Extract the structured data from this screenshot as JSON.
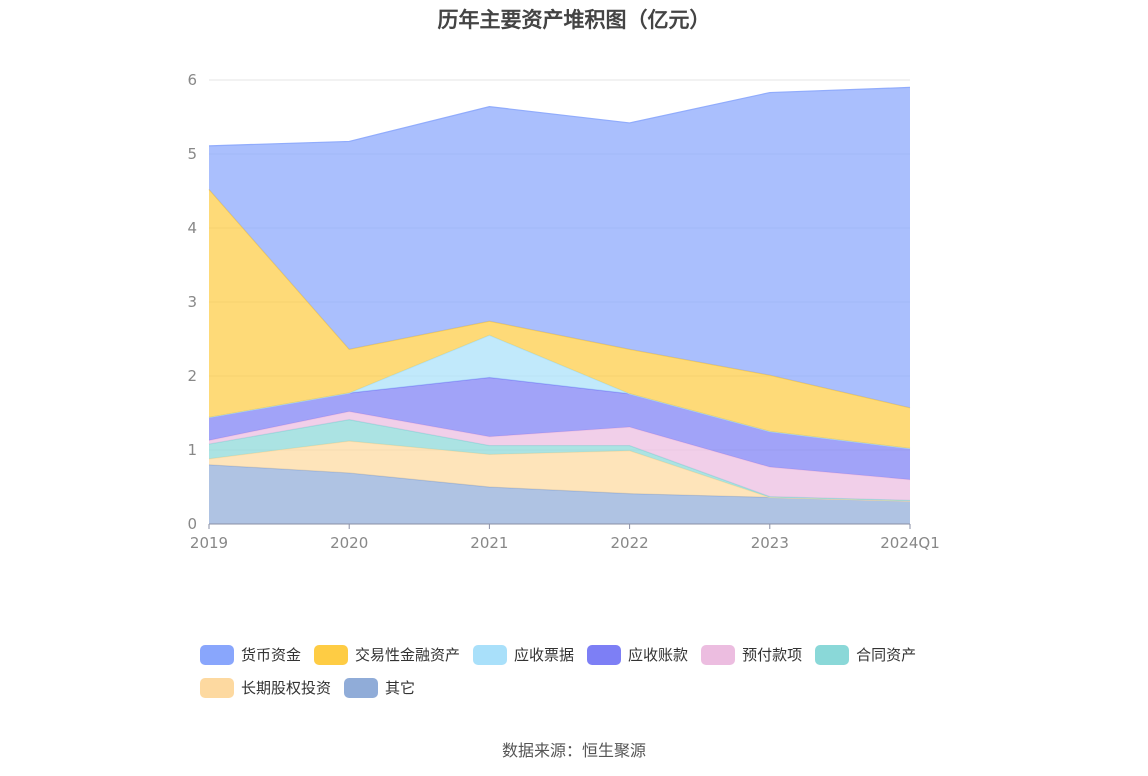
{
  "chart_data": {
    "type": "area",
    "stacked": true,
    "title": "历年主要资产堆积图（亿元）",
    "xlabel": "",
    "ylabel": "",
    "x": [
      "2019",
      "2020",
      "2021",
      "2022",
      "2023",
      "2024Q1"
    ],
    "ylim": [
      0,
      6
    ],
    "yticks": [
      0,
      1,
      2,
      3,
      4,
      5,
      6
    ],
    "grid": true,
    "legend_position": "bottom",
    "series": [
      {
        "name": "其它",
        "color": "#90acd8",
        "values": [
          0.8,
          0.69,
          0.5,
          0.41,
          0.36,
          0.31
        ]
      },
      {
        "name": "长期股权投资",
        "color": "#fdd9a0",
        "values": [
          0.08,
          0.43,
          0.44,
          0.58,
          0.0,
          0.0
        ]
      },
      {
        "name": "合同资产",
        "color": "#8ad8d8",
        "values": [
          0.2,
          0.29,
          0.12,
          0.07,
          0.01,
          0.01
        ]
      },
      {
        "name": "预付款项",
        "color": "#ecbde0",
        "values": [
          0.05,
          0.11,
          0.12,
          0.25,
          0.4,
          0.28
        ]
      },
      {
        "name": "应收账款",
        "color": "#7d7ff5",
        "values": [
          0.31,
          0.25,
          0.8,
          0.45,
          0.48,
          0.42
        ]
      },
      {
        "name": "应收票据",
        "color": "#a9e0fa",
        "values": [
          0.0,
          0.0,
          0.57,
          0.0,
          0.0,
          0.0
        ]
      },
      {
        "name": "交易性金融资产",
        "color": "#fecc44",
        "values": [
          3.08,
          0.59,
          0.19,
          0.6,
          0.76,
          0.55
        ]
      },
      {
        "name": "货币资金",
        "color": "#89a6fc",
        "values": [
          0.59,
          2.81,
          2.9,
          3.06,
          3.82,
          4.33
        ]
      }
    ]
  },
  "legend": {
    "rows": [
      [
        "货币资金",
        "交易性金融资产",
        "应收票据",
        "应收账款",
        "预付款项",
        "合同资产"
      ],
      [
        "长期股权投资",
        "其它"
      ]
    ]
  },
  "source": "数据来源：恒生聚源"
}
